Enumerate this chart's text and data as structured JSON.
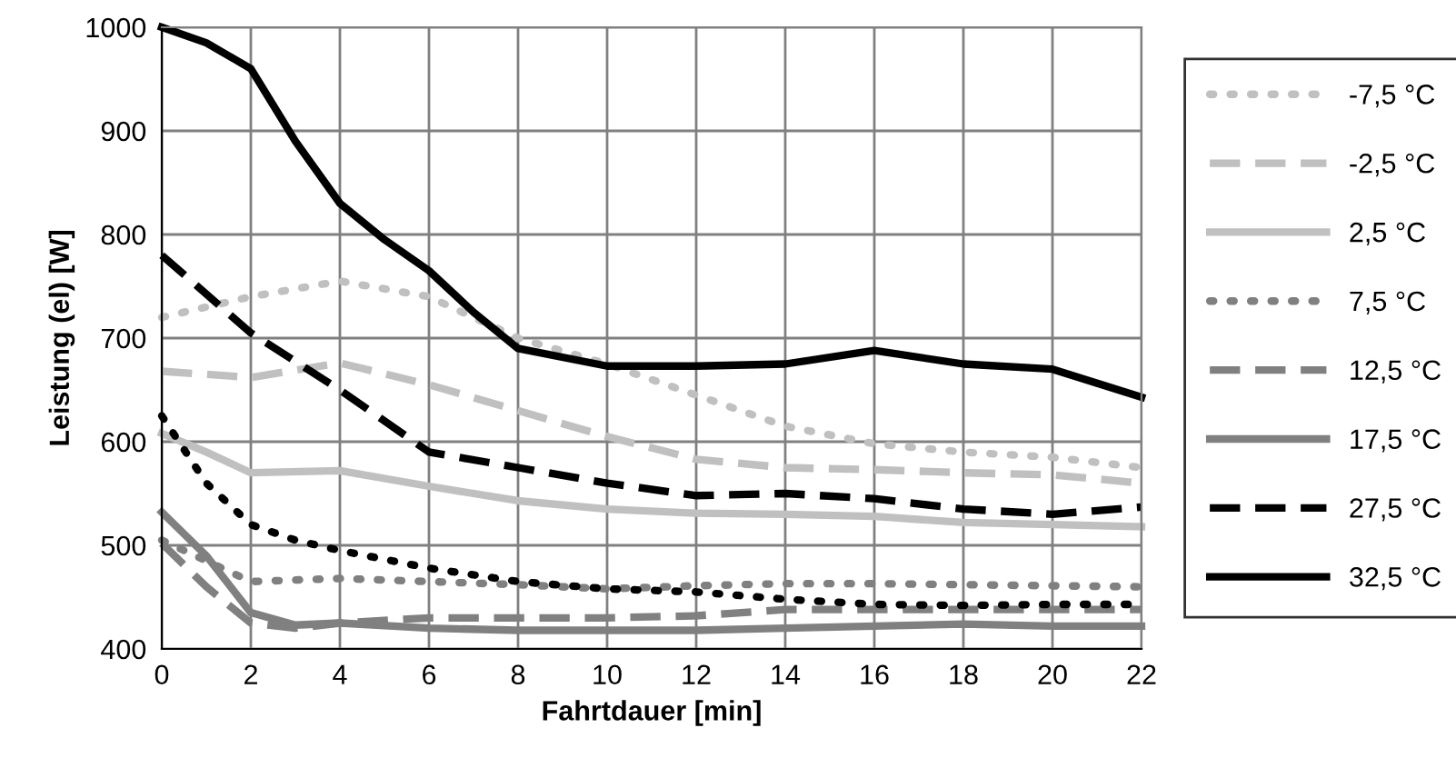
{
  "chart_data": {
    "type": "line",
    "xlabel": "Fahrtdauer [min]",
    "ylabel": "Leistung (el) [W]",
    "xlim": [
      0,
      22
    ],
    "xticks": [
      0,
      2,
      4,
      6,
      8,
      10,
      12,
      14,
      16,
      18,
      20,
      22
    ],
    "ylim": [
      400,
      1000
    ],
    "yticks": [
      400,
      500,
      600,
      700,
      800,
      900,
      1000
    ],
    "grid": true,
    "legend": "right",
    "marker": "none",
    "series": [
      {
        "name": "-7,5 °C",
        "color": "#c0c0c0",
        "line_style": "dotted",
        "x": [
          0,
          2,
          4,
          6,
          8,
          10,
          12,
          14,
          16,
          18,
          20,
          22
        ],
        "values": [
          720,
          740,
          755,
          740,
          700,
          675,
          645,
          615,
          598,
          590,
          585,
          575
        ]
      },
      {
        "name": "-2,5 °C",
        "color": "#c0c0c0",
        "line_style": "dashed",
        "x": [
          0,
          2,
          4,
          6,
          8,
          10,
          12,
          14,
          16,
          18,
          20,
          22
        ],
        "values": [
          668,
          662,
          676,
          655,
          630,
          605,
          583,
          575,
          573,
          570,
          568,
          560
        ]
      },
      {
        "name": "2,5 °C",
        "color": "#c0c0c0",
        "line_style": "solid",
        "x": [
          0,
          1,
          2,
          4,
          6,
          8,
          10,
          12,
          14,
          16,
          18,
          20,
          22
        ],
        "values": [
          608,
          590,
          570,
          572,
          557,
          543,
          535,
          531,
          530,
          528,
          522,
          520,
          518
        ]
      },
      {
        "name": "7,5 °C",
        "color": "#808080",
        "line_style": "dotted",
        "x": [
          0,
          1,
          2,
          4,
          6,
          8,
          10,
          12,
          14,
          16,
          18,
          20,
          22
        ],
        "values": [
          505,
          485,
          465,
          468,
          465,
          462,
          458,
          461,
          463,
          463,
          462,
          461,
          460
        ]
      },
      {
        "name": "12,5 °C",
        "color": "#808080",
        "line_style": "dashed",
        "x": [
          0,
          1,
          2,
          3,
          4,
          6,
          8,
          10,
          12,
          14,
          16,
          18,
          20,
          22
        ],
        "values": [
          502,
          460,
          425,
          420,
          425,
          430,
          430,
          430,
          432,
          438,
          438,
          438,
          438,
          438
        ]
      },
      {
        "name": "17,5 °C",
        "color": "#808080",
        "line_style": "solid",
        "x": [
          0,
          1,
          2,
          3,
          4,
          6,
          8,
          10,
          12,
          14,
          16,
          18,
          20,
          22
        ],
        "values": [
          532,
          490,
          435,
          423,
          425,
          420,
          418,
          418,
          418,
          420,
          422,
          424,
          422,
          422
        ]
      },
      {
        "color": "#000000",
        "line_style": "dotted",
        "x": [
          0,
          1,
          2,
          3,
          4,
          6,
          8,
          10,
          12,
          14,
          16,
          18,
          20,
          22
        ],
        "values": [
          625,
          560,
          520,
          505,
          495,
          478,
          465,
          458,
          455,
          448,
          443,
          442,
          443,
          443
        ]
      },
      {
        "name": "27,5 °C",
        "color": "#000000",
        "line_style": "dashed",
        "x": [
          0,
          2,
          4,
          6,
          8,
          10,
          12,
          14,
          16,
          18,
          20,
          22
        ],
        "values": [
          780,
          705,
          650,
          590,
          575,
          560,
          548,
          550,
          545,
          535,
          530,
          537
        ]
      },
      {
        "name": "32,5 °C",
        "color": "#000000",
        "line_style": "solid",
        "x": [
          0,
          1,
          2,
          3,
          4,
          5,
          6,
          7,
          8,
          10,
          12,
          14,
          16,
          18,
          20,
          22
        ],
        "values": [
          1000,
          985,
          960,
          890,
          830,
          795,
          765,
          725,
          690,
          673,
          673,
          675,
          688,
          675,
          670,
          643
        ]
      }
    ]
  }
}
